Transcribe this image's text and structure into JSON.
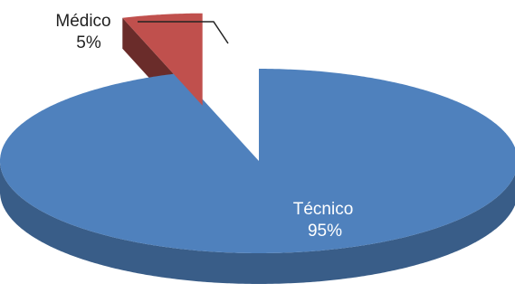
{
  "chart_data": {
    "type": "pie",
    "style": "3d-exploded",
    "slices": [
      {
        "label": "Técnico",
        "pct_label": "95%",
        "value": 95,
        "color": "#4f81bd"
      },
      {
        "label": "Médico",
        "pct_label": "5%",
        "value": 5,
        "color": "#c0504d"
      }
    ]
  }
}
